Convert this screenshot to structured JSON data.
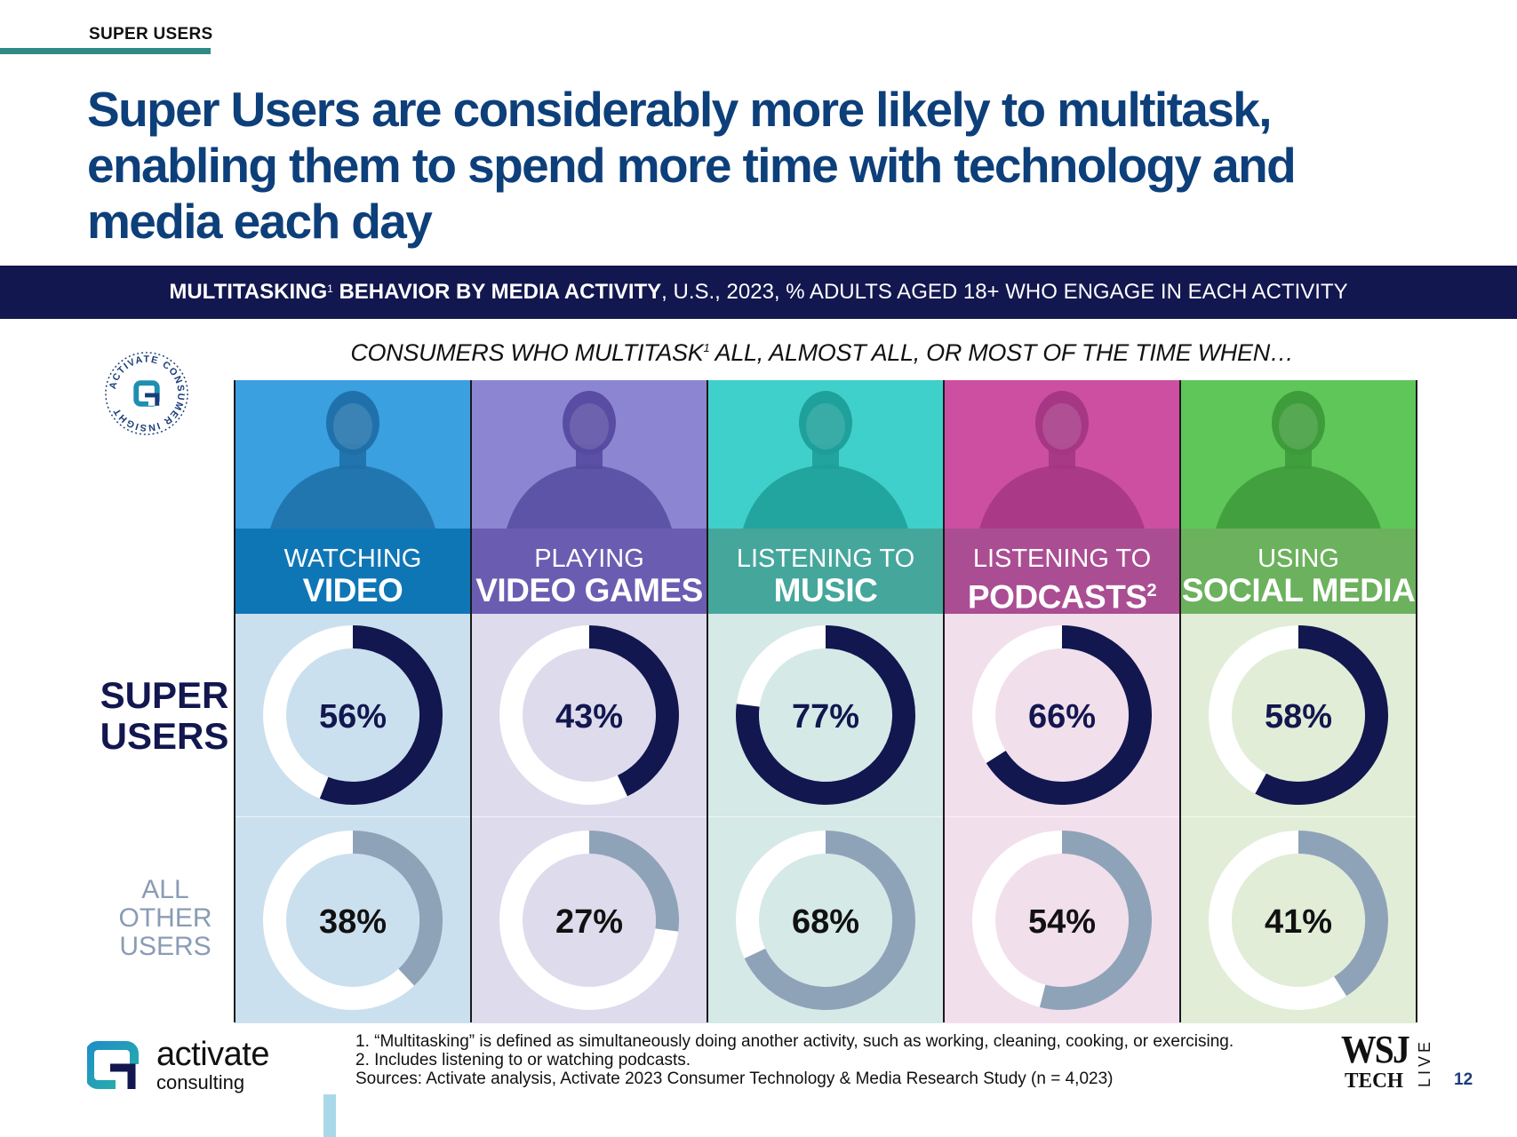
{
  "header": {
    "section_label": "SUPER USERS",
    "headline": "Super Users are considerably more likely to multitask, enabling them to spend more time with technology and media each day"
  },
  "banner": {
    "bold_part": "MULTITASKING",
    "sup": "1",
    "bold_part2": " BEHAVIOR BY MEDIA ACTIVITY",
    "rest": ", U.S., 2023, % ADULTS AGED 18+ WHO ENGAGE IN EACH ACTIVITY"
  },
  "subhead": {
    "part1": "CONSUMERS WHO MULTITASK",
    "sup": "1",
    "part2": " ALL, ALMOST ALL, OR MOST OF THE TIME WHEN…"
  },
  "badge": {
    "text": "ACTIVATE CONSUMER INSIGHT"
  },
  "row_labels": {
    "super": [
      "SUPER",
      "USERS"
    ],
    "other": [
      "ALL",
      "OTHER",
      "USERS"
    ]
  },
  "colors": {
    "super_arc": "#12174f",
    "other_arc": "#8fa3b8",
    "ring_bg": "#ffffff",
    "navy": "#12174f"
  },
  "chart_data": {
    "type": "donut",
    "categories": [
      "WATCHING VIDEO",
      "PLAYING VIDEO GAMES",
      "LISTENING TO MUSIC",
      "LISTENING TO PODCASTS²",
      "USING SOCIAL MEDIA"
    ],
    "series": [
      {
        "name": "SUPER USERS",
        "values": [
          56,
          43,
          77,
          66,
          58
        ]
      },
      {
        "name": "ALL OTHER USERS",
        "values": [
          38,
          27,
          68,
          54,
          41
        ]
      }
    ],
    "unit": "%"
  },
  "columns": [
    {
      "line1": "WATCHING",
      "line2": "VIDEO",
      "sup": "",
      "super_label": "56%",
      "other_label": "38%",
      "photo_color": "#3aa0df",
      "label_color": "#0f76b6",
      "cell_color": "#cbe0ee",
      "figure_color": "#1f6fa8"
    },
    {
      "line1": "PLAYING",
      "line2": "VIDEO GAMES",
      "sup": "",
      "super_label": "43%",
      "other_label": "27%",
      "photo_color": "#8c86d2",
      "label_color": "#6a5db1",
      "cell_color": "#dedbec",
      "figure_color": "#554aa0"
    },
    {
      "line1": "LISTENING TO",
      "line2": "MUSIC",
      "sup": "",
      "super_label": "77%",
      "other_label": "68%",
      "photo_color": "#40d0cb",
      "label_color": "#45a69c",
      "cell_color": "#d5e9e7",
      "figure_color": "#1e9e98"
    },
    {
      "line1": "LISTENING TO",
      "line2": "PODCASTS",
      "sup": "2",
      "super_label": "66%",
      "other_label": "54%",
      "photo_color": "#cc4fa2",
      "label_color": "#ab4d93",
      "cell_color": "#f2dfec",
      "figure_color": "#a33683"
    },
    {
      "line1": "USING",
      "line2": "SOCIAL MEDIA",
      "sup": "",
      "super_label": "58%",
      "other_label": "41%",
      "photo_color": "#5fc65a",
      "label_color": "#6cb15d",
      "cell_color": "#e1edd7",
      "figure_color": "#3d9a3a"
    }
  ],
  "footer": {
    "logo_line1": "activate",
    "logo_line2": "consulting",
    "footnote1": "1. “Multitasking” is defined as simultaneously doing another activity, such as working, cleaning, cooking, or exercising.",
    "footnote2": "2. Includes listening to or watching podcasts.",
    "sources": "Sources: Activate analysis, Activate 2023 Consumer Technology & Media Research Study (n = 4,023)",
    "wsj_line1": "WSJ",
    "wsj_line2": "TECH",
    "wsj_side": "LIVE",
    "page_number": "12"
  }
}
